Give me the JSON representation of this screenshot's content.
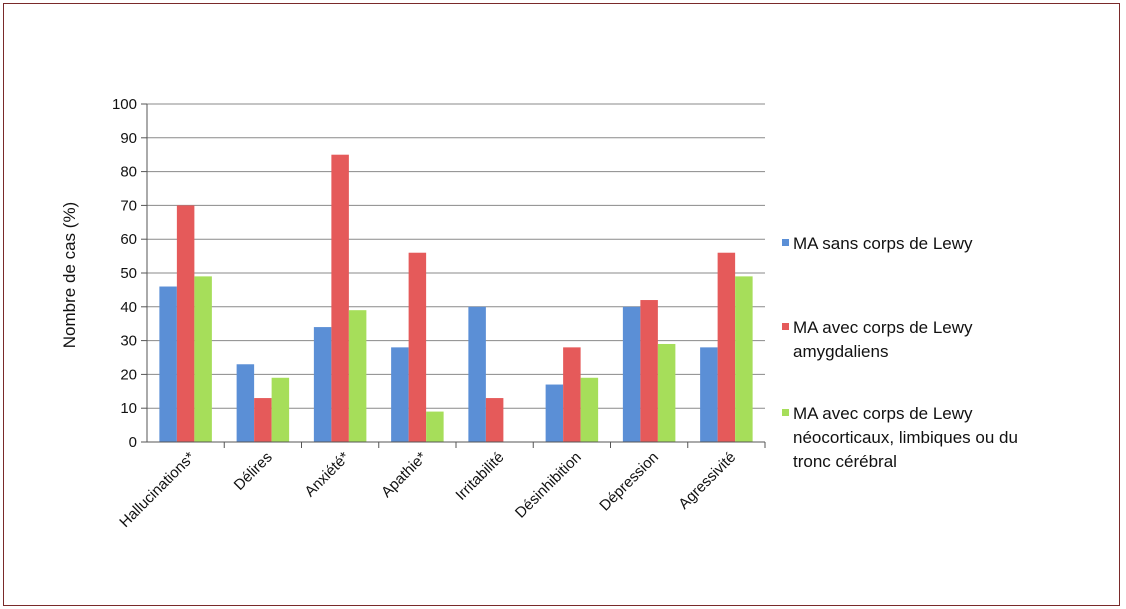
{
  "chart_data": {
    "type": "bar",
    "ylabel": "Nombre de cas (%)",
    "xlabel": "",
    "ylim": [
      0,
      100
    ],
    "yticks": [
      0,
      10,
      20,
      30,
      40,
      50,
      60,
      70,
      80,
      90,
      100
    ],
    "categories": [
      "Hallucinations*",
      "Délires",
      "Anxiété*",
      "Apathie*",
      "Irritabilité",
      "Désinhibition",
      "Dépression",
      "Agressivité"
    ],
    "series": [
      {
        "name": "MA sans corps de Lewy",
        "color": "#5b8fd6",
        "values": [
          46,
          23,
          34,
          28,
          40,
          17,
          40,
          28
        ]
      },
      {
        "name": "MA avec corps de Lewy amygdaliens",
        "color": "#e55a5a",
        "values": [
          70,
          13,
          85,
          56,
          13,
          28,
          42,
          56
        ]
      },
      {
        "name": "MA avec corps de Lewy néocorticaux, limbiques ou du tronc cérébral",
        "color": "#a6de5a",
        "values": [
          49,
          19,
          39,
          9,
          0,
          19,
          29,
          49
        ]
      }
    ],
    "grid": true,
    "legend_position": "right"
  },
  "legend": {
    "items": [
      {
        "label": "MA sans corps de Lewy"
      },
      {
        "label": "MA avec corps de Lewy\namygdaliens"
      },
      {
        "label": "MA avec corps de Lewy\nnéocorticaux, limbiques ou du\ntronc cérébral"
      }
    ]
  }
}
